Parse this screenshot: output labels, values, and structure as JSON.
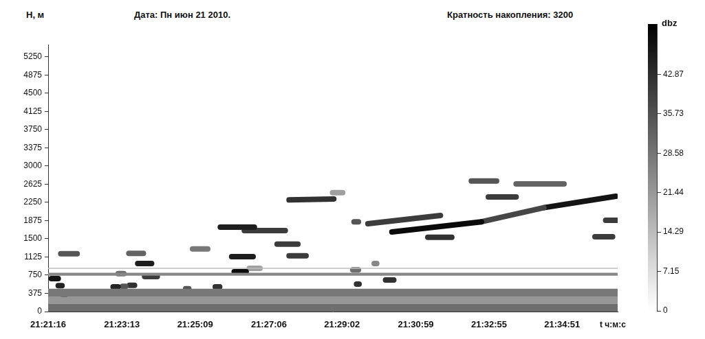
{
  "chart_data": {
    "type": "segments",
    "title": "Дата: Пн июн 21 2010.",
    "subtitle": "Кратность накопления: 3200",
    "x_label": "t ч:м:с",
    "y_label": "H, м",
    "grid": false,
    "xlim": [
      76876,
      77779
    ],
    "xticks": [
      {
        "value": 76876,
        "label": "21:21:16"
      },
      {
        "value": 76993,
        "label": "21:23:13"
      },
      {
        "value": 77109,
        "label": "21:25:09"
      },
      {
        "value": 77226,
        "label": "21:27:06"
      },
      {
        "value": 77342,
        "label": "21:29:02"
      },
      {
        "value": 77459,
        "label": "21:30:59"
      },
      {
        "value": 77575,
        "label": "21:32:55"
      },
      {
        "value": 77691,
        "label": "21:34:51"
      }
    ],
    "ylim": [
      0,
      5500
    ],
    "yticks": [
      0,
      375,
      750,
      1125,
      1500,
      1875,
      2250,
      2625,
      3000,
      3375,
      3750,
      4125,
      4500,
      4875,
      5250
    ],
    "bands": [
      {
        "h": [
          0,
          160
        ],
        "dbz": 30
      },
      {
        "h": [
          160,
          300
        ],
        "dbz": 22
      },
      {
        "h": [
          300,
          470
        ],
        "dbz": 28
      },
      {
        "h": [
          740,
          800
        ],
        "dbz": 25
      },
      {
        "h": [
          880,
          900
        ],
        "dbz": 14
      }
    ],
    "echoes": [
      {
        "t": [
          76896,
          76922
        ],
        "h": [
          1190,
          1190
        ],
        "dbz": 35
      },
      {
        "t": [
          76881,
          76892
        ],
        "h": [
          680,
          680
        ],
        "dbz": 48
      },
      {
        "t": [
          76892,
          76898
        ],
        "h": [
          535,
          535
        ],
        "dbz": 45
      },
      {
        "t": [
          76898,
          76904
        ],
        "h": [
          355,
          355
        ],
        "dbz": 45
      },
      {
        "t": [
          77004,
          77027
        ],
        "h": [
          1200,
          1200
        ],
        "dbz": 32
      },
      {
        "t": [
          77018,
          77040
        ],
        "h": [
          990,
          990
        ],
        "dbz": 46
      },
      {
        "t": [
          76987,
          76996
        ],
        "h": [
          780,
          780
        ],
        "dbz": 30
      },
      {
        "t": [
          76979,
          76987
        ],
        "h": [
          510,
          510
        ],
        "dbz": 45
      },
      {
        "t": [
          76994,
          76999
        ],
        "h": [
          520,
          520
        ],
        "dbz": 35
      },
      {
        "t": [
          77005,
          77013
        ],
        "h": [
          540,
          540
        ],
        "dbz": 42
      },
      {
        "t": [
          77029,
          77049
        ],
        "h": [
          720,
          720
        ],
        "dbz": 40
      },
      {
        "t": [
          77094,
          77099
        ],
        "h": [
          470,
          470
        ],
        "dbz": 35
      },
      {
        "t": [
          77105,
          77129
        ],
        "h": [
          1290,
          1290
        ],
        "dbz": 28
      },
      {
        "t": [
          77149,
          77203
        ],
        "h": [
          1740,
          1740
        ],
        "dbz": 46
      },
      {
        "t": [
          77187,
          77252
        ],
        "h": [
          1670,
          1670
        ],
        "dbz": 40
      },
      {
        "t": [
          77167,
          77201
        ],
        "h": [
          1130,
          1130
        ],
        "dbz": 46
      },
      {
        "t": [
          77171,
          77190
        ],
        "h": [
          820,
          820
        ],
        "dbz": 50
      },
      {
        "t": [
          77195,
          77212
        ],
        "h": [
          890,
          890
        ],
        "dbz": 20
      },
      {
        "t": [
          77141,
          77148
        ],
        "h": [
          510,
          510
        ],
        "dbz": 42
      },
      {
        "t": [
          77239,
          77272
        ],
        "h": [
          1390,
          1390
        ],
        "dbz": 40
      },
      {
        "t": [
          77258,
          77285
        ],
        "h": [
          1150,
          1150
        ],
        "dbz": 40
      },
      {
        "t": [
          77258,
          77329
        ],
        "h": [
          2300,
          2320
        ],
        "dbz": 42
      },
      {
        "t": [
          77327,
          77343
        ],
        "h": [
          2450,
          2450
        ],
        "dbz": 20
      },
      {
        "t": [
          77361,
          77368
        ],
        "h": [
          1850,
          1850
        ],
        "dbz": 35
      },
      {
        "t": [
          77359,
          77368
        ],
        "h": [
          860,
          860
        ],
        "dbz": 30
      },
      {
        "t": [
          77365,
          77369
        ],
        "h": [
          565,
          565
        ],
        "dbz": 42
      },
      {
        "t": [
          77393,
          77397
        ],
        "h": [
          990,
          990
        ],
        "dbz": 25
      },
      {
        "t": [
          77411,
          77424
        ],
        "h": [
          650,
          650
        ],
        "dbz": 42
      },
      {
        "t": [
          77383,
          77498
        ],
        "h": [
          1810,
          1980
        ],
        "dbz": 40
      },
      {
        "t": [
          77421,
          77563
        ],
        "h": [
          1640,
          1850
        ],
        "dbz": 50
      },
      {
        "t": [
          77563,
          77662
        ],
        "h": [
          1850,
          2140
        ],
        "dbz": 38
      },
      {
        "t": [
          77662,
          77776
        ],
        "h": [
          2140,
          2375
        ],
        "dbz": 48
      },
      {
        "t": [
          77478,
          77516
        ],
        "h": [
          1530,
          1530
        ],
        "dbz": 42
      },
      {
        "t": [
          77547,
          77587
        ],
        "h": [
          2690,
          2690
        ],
        "dbz": 35
      },
      {
        "t": [
          77574,
          77618
        ],
        "h": [
          2360,
          2360
        ],
        "dbz": 40
      },
      {
        "t": [
          77618,
          77694
        ],
        "h": [
          2630,
          2630
        ],
        "dbz": 32
      },
      {
        "t": [
          77743,
          77771
        ],
        "h": [
          1540,
          1540
        ],
        "dbz": 40
      },
      {
        "t": [
          77760,
          77779
        ],
        "h": [
          1880,
          1880
        ],
        "dbz": 40
      }
    ],
    "colorbar": {
      "label": "dbz",
      "range": [
        0,
        52
      ],
      "ticks": [
        0,
        7.15,
        14.29,
        21.44,
        28.58,
        35.73,
        42.87
      ]
    }
  }
}
